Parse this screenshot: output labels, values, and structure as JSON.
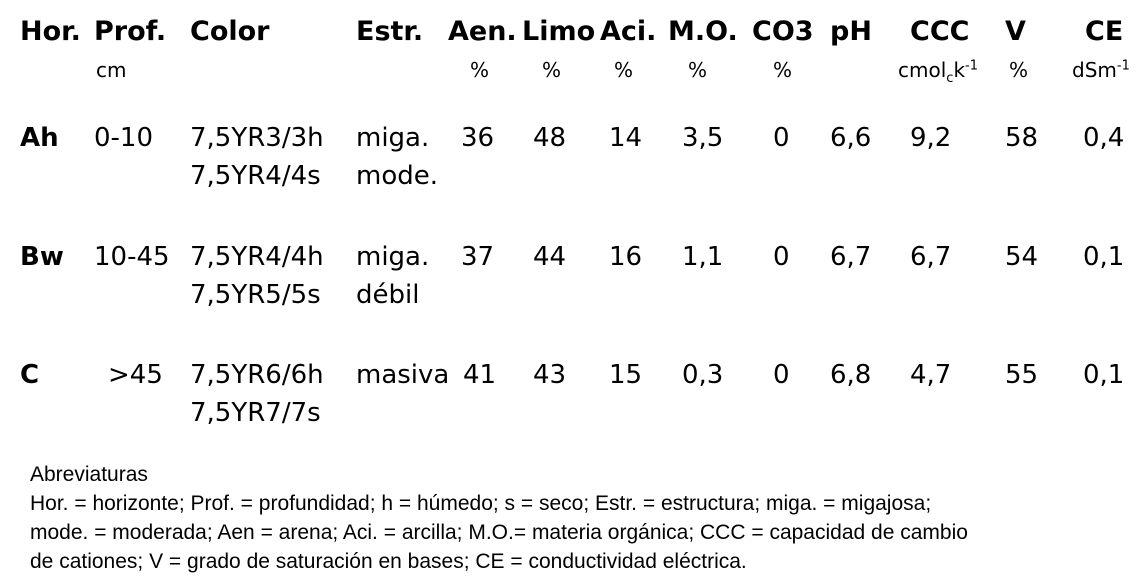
{
  "headers": {
    "hor": "Hor.",
    "prof": "Prof.",
    "color": "Color",
    "estr": "Estr.",
    "aen": "Aen.",
    "limo": "Limo",
    "aci": "Aci.",
    "mo": "M.O.",
    "co3": "CO3",
    "ph": "pH",
    "ccc": "CCC",
    "v": "V",
    "ce": "CE"
  },
  "units": {
    "prof": "cm",
    "aen": "%",
    "limo": "%",
    "aci": "%",
    "mo": "%",
    "co3": "%",
    "ccc_main": "cmol",
    "ccc_sub": "c",
    "ccc_k": "k",
    "ccc_sup": "-1",
    "v": "%",
    "ce_main": "dSm",
    "ce_sup": "-1"
  },
  "rows": [
    {
      "hor": "Ah",
      "prof": "0-10",
      "color1": "7,5YR3/3h",
      "color2": "7,5YR4/4s",
      "estr1": "miga.",
      "estr2": "mode.",
      "aen": "36",
      "limo": "48",
      "aci": "14",
      "mo": "3,5",
      "co3": "0",
      "ph": "6,6",
      "ccc": "9,2",
      "v": "58",
      "ce": "0,4"
    },
    {
      "hor": "Bw",
      "prof": "10-45",
      "color1": "7,5YR4/4h",
      "color2": "7,5YR5/5s",
      "estr1": "miga.",
      "estr2": "débil",
      "aen": "37",
      "limo": "44",
      "aci": "16",
      "mo": "1,1",
      "co3": "0",
      "ph": "6,7",
      "ccc": "6,7",
      "v": "54",
      "ce": "0,1"
    },
    {
      "hor": "C",
      "prof": ">45",
      "color1": "7,5YR6/6h",
      "color2": "7,5YR7/7s",
      "estr1": "masiva",
      "estr2": "",
      "aen": "41",
      "limo": "43",
      "aci": "15",
      "mo": "0,3",
      "co3": "0",
      "ph": "6,8",
      "ccc": "4,7",
      "v": "55",
      "ce": "0,1"
    }
  ],
  "notes": {
    "title": "Abreviaturas",
    "line1": "Hor. = horizonte; Prof. = profundidad; h = húmedo; s = seco; Estr. = estructura;  miga. = migajosa;",
    "line2": "mode. = moderada; Aen = arena; Aci. = arcilla; M.O.= materia orgánica; CCC = capacidad de cambio",
    "line3": "de cationes; V = grado de saturación en bases; CE = conductividad eléctrica."
  }
}
